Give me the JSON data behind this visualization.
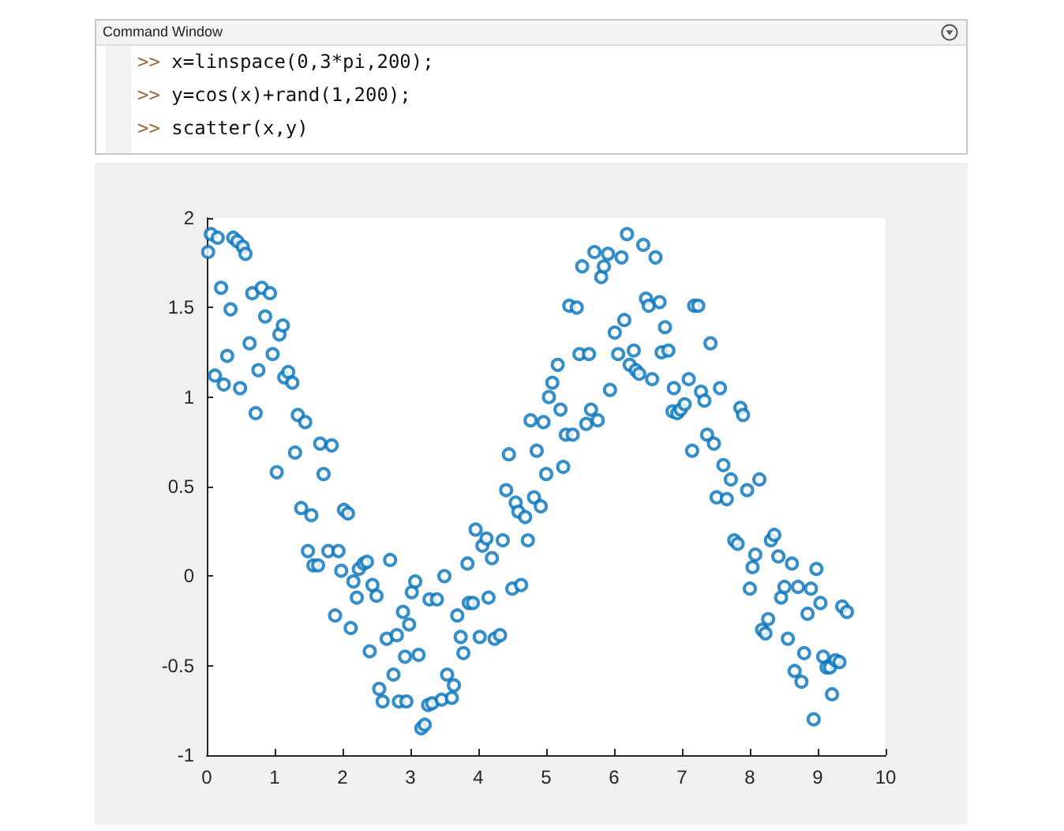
{
  "chart_data": {
    "type": "scatter",
    "marker": "circle",
    "color": "#0072bd",
    "grid": false,
    "annotations": [
      "Command Window",
      ">> x=linspace(0,3*pi,200);",
      ">> y=cos(x)+rand(1,200);",
      ">> scatter(x,y)"
    ],
    "xlim": [
      0,
      10
    ],
    "xticks": [
      0,
      1,
      2,
      3,
      4,
      5,
      6,
      7,
      8,
      9,
      10
    ],
    "ylim": [
      -1,
      2
    ],
    "yticks": [
      -1,
      -0.5,
      0,
      0.5,
      1,
      1.5,
      2
    ],
    "x": [
      0.02,
      0.06,
      0.16,
      0.39,
      0.45,
      0.53,
      0.57,
      0.12,
      0.21,
      0.25,
      0.3,
      0.35,
      0.49,
      0.63,
      0.67,
      0.72,
      0.76,
      0.81,
      0.86,
      0.93,
      0.97,
      1.03,
      1.07,
      1.12,
      1.14,
      1.2,
      1.26,
      1.3,
      1.34,
      1.45,
      1.39,
      1.54,
      1.49,
      1.57,
      1.64,
      1.67,
      1.72,
      1.79,
      1.84,
      1.89,
      1.94,
      1.98,
      2.02,
      2.08,
      2.12,
      2.16,
      2.21,
      2.24,
      2.31,
      2.36,
      2.4,
      2.44,
      2.5,
      2.54,
      2.59,
      2.65,
      2.7,
      2.75,
      2.8,
      2.83,
      2.89,
      2.94,
      2.98,
      3.02,
      3.07,
      2.92,
      3.12,
      3.16,
      3.21,
      3.26,
      3.32,
      3.28,
      3.39,
      3.46,
      3.5,
      3.54,
      3.61,
      3.64,
      3.69,
      3.74,
      3.78,
      3.84,
      3.86,
      3.92,
      3.96,
      4.02,
      4.06,
      4.12,
      4.15,
      4.2,
      4.24,
      4.32,
      4.36,
      4.41,
      4.45,
      4.5,
      4.55,
      4.59,
      4.63,
      4.69,
      4.73,
      4.77,
      4.82,
      4.86,
      4.92,
      4.96,
      5.0,
      5.04,
      5.09,
      5.17,
      5.21,
      5.25,
      5.29,
      5.34,
      5.39,
      5.45,
      5.49,
      5.53,
      5.59,
      5.63,
      5.66,
      5.71,
      5.76,
      5.81,
      5.85,
      5.91,
      5.94,
      6.01,
      6.06,
      6.11,
      6.15,
      6.19,
      6.23,
      6.29,
      6.32,
      6.37,
      6.43,
      6.47,
      6.51,
      6.56,
      6.61,
      6.67,
      6.7,
      6.75,
      6.8,
      6.88,
      6.86,
      6.93,
      6.98,
      7.04,
      7.1,
      7.15,
      7.18,
      7.24,
      7.28,
      7.33,
      7.37,
      7.42,
      7.47,
      7.51,
      7.56,
      7.61,
      7.66,
      7.72,
      7.77,
      7.82,
      7.86,
      7.9,
      7.96,
      8.0,
      8.04,
      8.08,
      8.14,
      8.18,
      8.23,
      8.27,
      8.31,
      8.36,
      8.42,
      8.46,
      8.51,
      8.56,
      8.62,
      8.66,
      8.71,
      8.76,
      8.8,
      8.85,
      8.9,
      8.94,
      8.98,
      9.04,
      9.08,
      9.13,
      9.18,
      9.21,
      9.26,
      9.32,
      9.36,
      9.43
    ],
    "values": [
      1.81,
      1.91,
      1.89,
      1.89,
      1.87,
      1.84,
      1.8,
      1.12,
      1.61,
      1.07,
      1.23,
      1.49,
      1.05,
      1.3,
      1.58,
      0.91,
      1.15,
      1.61,
      1.45,
      1.58,
      1.24,
      0.58,
      1.35,
      1.4,
      1.11,
      1.14,
      1.08,
      0.69,
      0.9,
      0.86,
      0.38,
      0.34,
      0.14,
      0.06,
      0.06,
      0.74,
      0.57,
      0.14,
      0.73,
      -0.22,
      0.14,
      0.03,
      0.37,
      0.35,
      -0.29,
      -0.03,
      -0.12,
      0.04,
      0.07,
      0.08,
      -0.42,
      -0.05,
      -0.11,
      -0.63,
      -0.7,
      -0.35,
      0.09,
      -0.55,
      -0.33,
      -0.7,
      -0.2,
      -0.7,
      -0.27,
      -0.09,
      -0.03,
      -0.45,
      -0.44,
      -0.85,
      -0.83,
      -0.72,
      -0.71,
      -0.13,
      -0.13,
      -0.69,
      0.0,
      -0.55,
      -0.68,
      -0.61,
      -0.22,
      -0.34,
      -0.43,
      0.07,
      -0.15,
      -0.15,
      0.26,
      -0.34,
      0.17,
      0.21,
      -0.12,
      0.1,
      -0.35,
      -0.33,
      0.2,
      0.48,
      0.68,
      -0.07,
      0.41,
      0.36,
      -0.05,
      0.33,
      0.2,
      0.87,
      0.44,
      0.7,
      0.39,
      0.86,
      0.57,
      1.0,
      1.08,
      1.18,
      0.93,
      0.61,
      0.79,
      1.51,
      0.79,
      1.5,
      1.24,
      1.73,
      0.85,
      1.24,
      0.93,
      1.81,
      0.87,
      1.67,
      1.73,
      1.8,
      1.04,
      1.36,
      1.24,
      1.78,
      1.43,
      1.91,
      1.18,
      1.26,
      1.15,
      1.13,
      1.85,
      1.55,
      1.51,
      1.1,
      1.78,
      1.53,
      1.25,
      1.39,
      1.26,
      1.05,
      0.92,
      0.91,
      0.93,
      0.96,
      1.1,
      0.7,
      1.51,
      1.51,
      1.03,
      0.98,
      0.79,
      1.3,
      0.74,
      0.44,
      1.05,
      0.62,
      0.43,
      0.54,
      0.2,
      0.18,
      0.94,
      0.9,
      0.48,
      -0.07,
      0.05,
      0.12,
      0.54,
      -0.3,
      -0.32,
      -0.24,
      0.2,
      0.23,
      0.11,
      -0.12,
      -0.06,
      -0.35,
      0.07,
      -0.53,
      -0.06,
      -0.59,
      -0.43,
      -0.21,
      -0.07,
      -0.8,
      0.04,
      -0.15,
      -0.45,
      -0.51,
      -0.51,
      -0.66,
      -0.47,
      -0.48,
      -0.17,
      -0.2
    ]
  }
}
